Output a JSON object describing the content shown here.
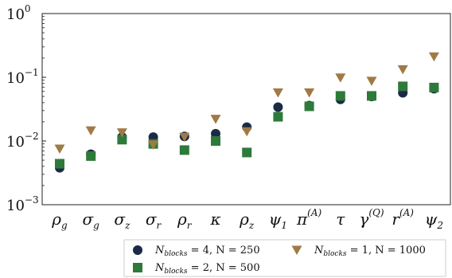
{
  "chart_data": {
    "type": "scatter",
    "y_scale": "log",
    "ylim": [
      0.001,
      1
    ],
    "y_ticks": [
      {
        "value": 1,
        "base": "10",
        "exp": "0"
      },
      {
        "value": 0.1,
        "base": "10",
        "exp": "−1"
      },
      {
        "value": 0.01,
        "base": "10",
        "exp": "−2"
      },
      {
        "value": 0.001,
        "base": "10",
        "exp": "−3"
      }
    ],
    "categories": [
      {
        "sym": "ρ",
        "sub": "g",
        "sup": ""
      },
      {
        "sym": "σ",
        "sub": "g",
        "sup": ""
      },
      {
        "sym": "σ",
        "sub": "z",
        "sup": ""
      },
      {
        "sym": "σ",
        "sub": "r",
        "sup": ""
      },
      {
        "sym": "ρ",
        "sub": "r",
        "sup": ""
      },
      {
        "sym": "κ",
        "sub": "",
        "sup": ""
      },
      {
        "sym": "ρ",
        "sub": "z",
        "sup": ""
      },
      {
        "sym": "ψ",
        "sub": "1",
        "sup": ""
      },
      {
        "sym": "π",
        "sub": "",
        "sup": "(A)"
      },
      {
        "sym": "τ",
        "sub": "",
        "sup": ""
      },
      {
        "sym": "γ",
        "sub": "",
        "sup": "(Q)"
      },
      {
        "sym": "r",
        "sub": "",
        "sup": "(A)"
      },
      {
        "sym": "ψ",
        "sub": "2",
        "sup": ""
      }
    ],
    "series": [
      {
        "name": "N_blocks = 4, N = 250",
        "marker": "circle",
        "color": "#1b2a47",
        "values": [
          0.0038,
          0.0062,
          0.0115,
          0.0115,
          0.0118,
          0.013,
          0.0165,
          0.034,
          0.036,
          0.045,
          0.05,
          0.057,
          0.066
        ]
      },
      {
        "name": "N_blocks = 2, N = 500",
        "marker": "square",
        "color": "#2e7a3a",
        "values": [
          0.0044,
          0.0058,
          0.0105,
          0.009,
          0.0072,
          0.01,
          0.0066,
          0.024,
          0.035,
          0.051,
          0.051,
          0.072,
          0.069
        ]
      },
      {
        "name": "N_blocks = 1, N = 1000",
        "marker": "triangle-down",
        "color": "#a07a45",
        "values": [
          0.0075,
          0.0145,
          0.0135,
          0.0087,
          0.0115,
          0.022,
          0.014,
          0.057,
          0.057,
          0.098,
          0.087,
          0.132,
          0.21
        ]
      }
    ],
    "legend": {
      "position": "bottom",
      "entries": [
        {
          "series": 0,
          "pre": "N",
          "sub": "blocks",
          "post": " = 4, N = 250"
        },
        {
          "series": 2,
          "pre": "N",
          "sub": "blocks",
          "post": " = 1, N = 1000"
        },
        {
          "series": 1,
          "pre": "N",
          "sub": "blocks",
          "post": " = 2, N = 500"
        }
      ]
    },
    "grid": false
  }
}
